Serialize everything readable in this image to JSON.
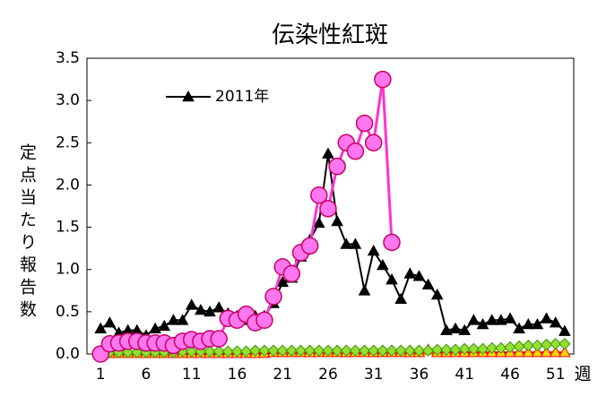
{
  "chart_data": {
    "type": "line",
    "title": "伝染性紅斑",
    "ylabel": "定点当たり報告数",
    "xlabel": "週",
    "x": [
      1,
      2,
      3,
      4,
      5,
      6,
      7,
      8,
      9,
      10,
      11,
      12,
      13,
      14,
      15,
      16,
      17,
      18,
      19,
      20,
      21,
      22,
      23,
      24,
      25,
      26,
      27,
      28,
      29,
      30,
      31,
      32,
      33,
      34,
      35,
      36,
      37,
      38,
      39,
      40,
      41,
      42,
      43,
      44,
      45,
      46,
      47,
      48,
      49,
      50,
      51,
      52
    ],
    "xlim": [
      -0.5,
      53
    ],
    "xticks": [
      1,
      6,
      11,
      16,
      21,
      26,
      31,
      36,
      41,
      46,
      51
    ],
    "ylim": [
      0,
      3.5
    ],
    "yticks": [
      {
        "value": 0,
        "label": "0.0"
      },
      0.5,
      {
        "value": 1,
        "label": "1.0"
      },
      1.5,
      {
        "value": 2,
        "label": "2.0"
      },
      2.5,
      {
        "value": 3,
        "label": "3.0"
      },
      3.5
    ],
    "legend": "upper left",
    "series": [
      {
        "color": "#ff0000",
        "fill": "#ffdd00",
        "marker": "triangle",
        "values": [
          0.01,
          0.01,
          0.01,
          0.01,
          0.01,
          0.01,
          0.01,
          0.01,
          0.01,
          0.01,
          0.01,
          0.01,
          0.01,
          0.01,
          0.01,
          0.01,
          0.01,
          0.01,
          0.01,
          0.02,
          0.02,
          0.02,
          0.02,
          0.02,
          0.02,
          0.02,
          0.02,
          0.02,
          0.02,
          0.02,
          0.02,
          0.02,
          0.02,
          0.02,
          0.02,
          0.02,
          0.05,
          0.02,
          0.02,
          0.02,
          0.02,
          0.02,
          0.02,
          0.02,
          0.02,
          0.02,
          0.02,
          0.02,
          0.02,
          0.02,
          0.02,
          0.02
        ]
      },
      {
        "color": "#339900",
        "fill": "#99dd33",
        "marker": "diamond",
        "values": [
          0,
          0.02,
          0.02,
          0.02,
          0.02,
          0.02,
          0.02,
          0.02,
          0.02,
          0.03,
          0.03,
          0.03,
          0.03,
          0.03,
          0.03,
          0.03,
          0.03,
          0.04,
          0.04,
          0.04,
          0.04,
          0.04,
          0.04,
          0.04,
          0.04,
          0.04,
          0.04,
          0.04,
          0.04,
          0.04,
          0.04,
          0.04,
          0.04,
          0.04,
          0.04,
          0.04,
          0.04,
          0.05,
          0.05,
          0.05,
          0.06,
          0.06,
          0.06,
          0.07,
          0.07,
          0.08,
          0.09,
          0.1,
          0.1,
          0.11,
          0.12,
          0.12
        ]
      },
      {
        "name": "2011年",
        "color": "#000000",
        "fill": "#000000",
        "marker": "triangle",
        "values": [
          0.3,
          0.37,
          0.25,
          0.28,
          0.28,
          0.22,
          0.3,
          0.33,
          0.4,
          0.4,
          0.58,
          0.52,
          0.5,
          0.55,
          0.48,
          0.45,
          0.4,
          0.45,
          0.45,
          0.6,
          0.85,
          0.9,
          1.15,
          1.35,
          1.55,
          2.37,
          1.57,
          1.3,
          1.3,
          0.75,
          1.22,
          1.05,
          0.88,
          0.65,
          0.95,
          0.92,
          0.82,
          0.7,
          0.28,
          0.3,
          0.28,
          0.4,
          0.35,
          0.4,
          0.4,
          0.42,
          0.3,
          0.35,
          0.35,
          0.42,
          0.37,
          0.27
        ]
      },
      {
        "color": "#ff33cc",
        "fill": "#ff77ee",
        "marker": "circle",
        "values": [
          0,
          0.12,
          0.13,
          0.15,
          0.15,
          0.13,
          0.13,
          0.13,
          0.1,
          0.15,
          0.17,
          0.15,
          0.18,
          0.18,
          0.42,
          0.4,
          0.47,
          0.37,
          0.4,
          0.68,
          1.03,
          0.95,
          1.2,
          1.28,
          1.88,
          1.72,
          2.22,
          2.5,
          2.4,
          2.73,
          2.5,
          3.25,
          1.32,
          null,
          null,
          null,
          null,
          null,
          null,
          null,
          null,
          null,
          null,
          null,
          null,
          null,
          null,
          null,
          null,
          null,
          null,
          null
        ]
      }
    ]
  }
}
